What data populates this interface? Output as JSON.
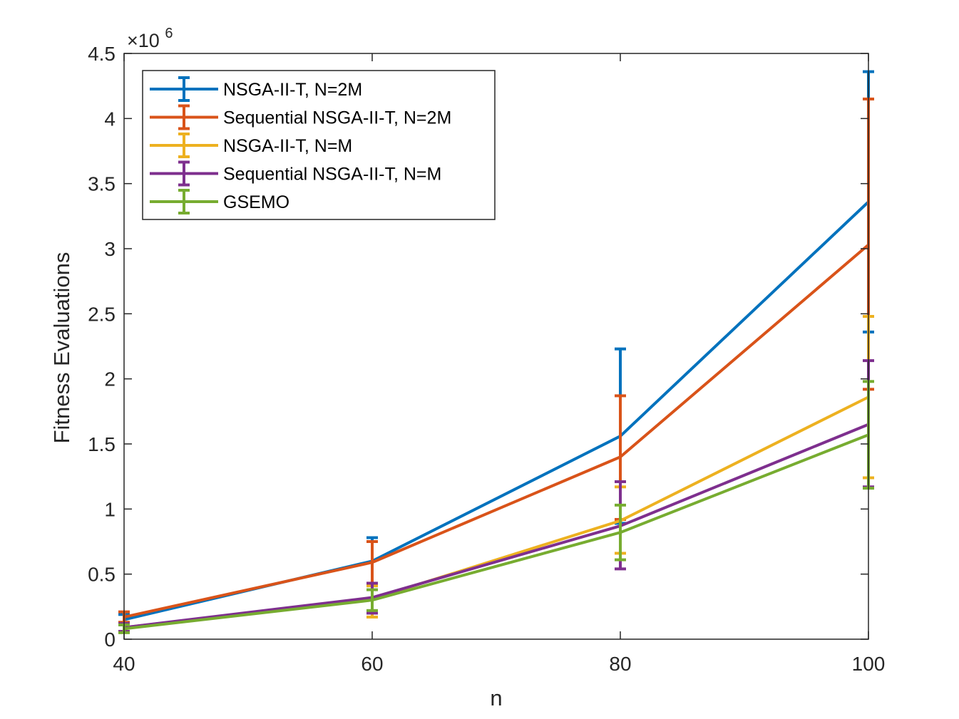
{
  "chart_data": {
    "type": "line",
    "title": "",
    "xlabel": "n",
    "ylabel": "Fitness Evaluations",
    "y_multiplier": "×10",
    "y_multiplier_exp": "6",
    "x": [
      40,
      60,
      80,
      100
    ],
    "x_ticks": [
      "40",
      "60",
      "80",
      "100"
    ],
    "xlim": [
      40,
      100
    ],
    "y_ticks": [
      "0",
      "0.5",
      "1",
      "1.5",
      "2",
      "2.5",
      "3",
      "3.5",
      "4",
      "4.5"
    ],
    "ylim": [
      0,
      4.5
    ],
    "grid": false,
    "legend_position": "top-left",
    "series": [
      {
        "name": "NSGA-II-T, N=2M",
        "color": "#0072BD",
        "values": [
          0.15,
          0.6,
          1.56,
          3.36
        ],
        "err_low": [
          0.11,
          0.41,
          0.89,
          2.36
        ],
        "err_high": [
          0.19,
          0.78,
          2.23,
          4.36
        ]
      },
      {
        "name": "Sequential NSGA-II-T, N=2M",
        "color": "#D95319",
        "values": [
          0.17,
          0.59,
          1.4,
          3.03
        ],
        "err_low": [
          0.13,
          0.43,
          0.92,
          1.92
        ],
        "err_high": [
          0.21,
          0.75,
          1.87,
          4.15
        ]
      },
      {
        "name": "NSGA-II-T, N=M",
        "color": "#EDB120",
        "values": [
          0.09,
          0.31,
          0.91,
          1.86
        ],
        "err_low": [
          0.06,
          0.17,
          0.66,
          1.24
        ],
        "err_high": [
          0.12,
          0.41,
          1.17,
          2.48
        ]
      },
      {
        "name": "Sequential NSGA-II-T, N=M",
        "color": "#7E2F8E",
        "values": [
          0.09,
          0.32,
          0.87,
          1.65
        ],
        "err_low": [
          0.06,
          0.2,
          0.54,
          1.17
        ],
        "err_high": [
          0.12,
          0.43,
          1.21,
          2.14
        ]
      },
      {
        "name": "GSEMO",
        "color": "#77AC30",
        "values": [
          0.08,
          0.3,
          0.82,
          1.57
        ],
        "err_low": [
          0.05,
          0.22,
          0.61,
          1.16
        ],
        "err_high": [
          0.11,
          0.38,
          1.03,
          1.98
        ]
      }
    ]
  }
}
